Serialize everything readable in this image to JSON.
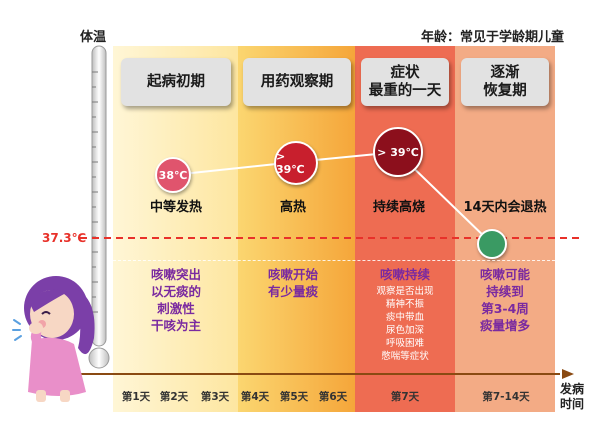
{
  "header": {
    "y_axis_label": "体温",
    "age_note": "年龄：常见于学龄期儿童"
  },
  "threshold": {
    "label": "37.3℃"
  },
  "x_axis_label": "发病\n时间",
  "stages": [
    {
      "title": "起病初期",
      "fever_circle": "38℃",
      "fever_text": "中等发热",
      "symptom": "咳嗽突出\n以无痰的\n刺激性\n干咳为主",
      "detail": ""
    },
    {
      "title": "用药观察期",
      "fever_circle": "> 39℃",
      "fever_text": "高热",
      "symptom": "咳嗽开始\n有少量痰",
      "detail": ""
    },
    {
      "title": "症状\n最重的一天",
      "fever_circle": "> 39℃",
      "fever_text": "持续高烧",
      "symptom": "咳嗽持续",
      "detail": "观察是否出现\n精神不振\n痰中带血\n尿色加深\n呼吸困难\n憋喘等症状"
    },
    {
      "title": "逐渐\n恢复期",
      "fever_circle": "",
      "fever_text": "14天内会退热",
      "symptom": "咳嗽可能\n持续到\n第3-4周\n痰量增多",
      "detail": ""
    }
  ],
  "days": [
    "第1天",
    "第2天",
    "第3天",
    "第4天",
    "第5天",
    "第6天",
    "第7天",
    "第7-14天"
  ],
  "colors": {
    "threshold_line": "#e8312a",
    "stage_band_1": "#fde9a8",
    "stage_band_2": "#f9c24a",
    "stage_band_3": "#ee6a50",
    "stage_band_4": "#f3a981",
    "symptom_text": "#7a2aa0",
    "circle_38": "#e0546d",
    "circle_39a": "#c81f2d",
    "circle_39b": "#8c0f1c",
    "circle_recovery": "#3a9a63"
  }
}
